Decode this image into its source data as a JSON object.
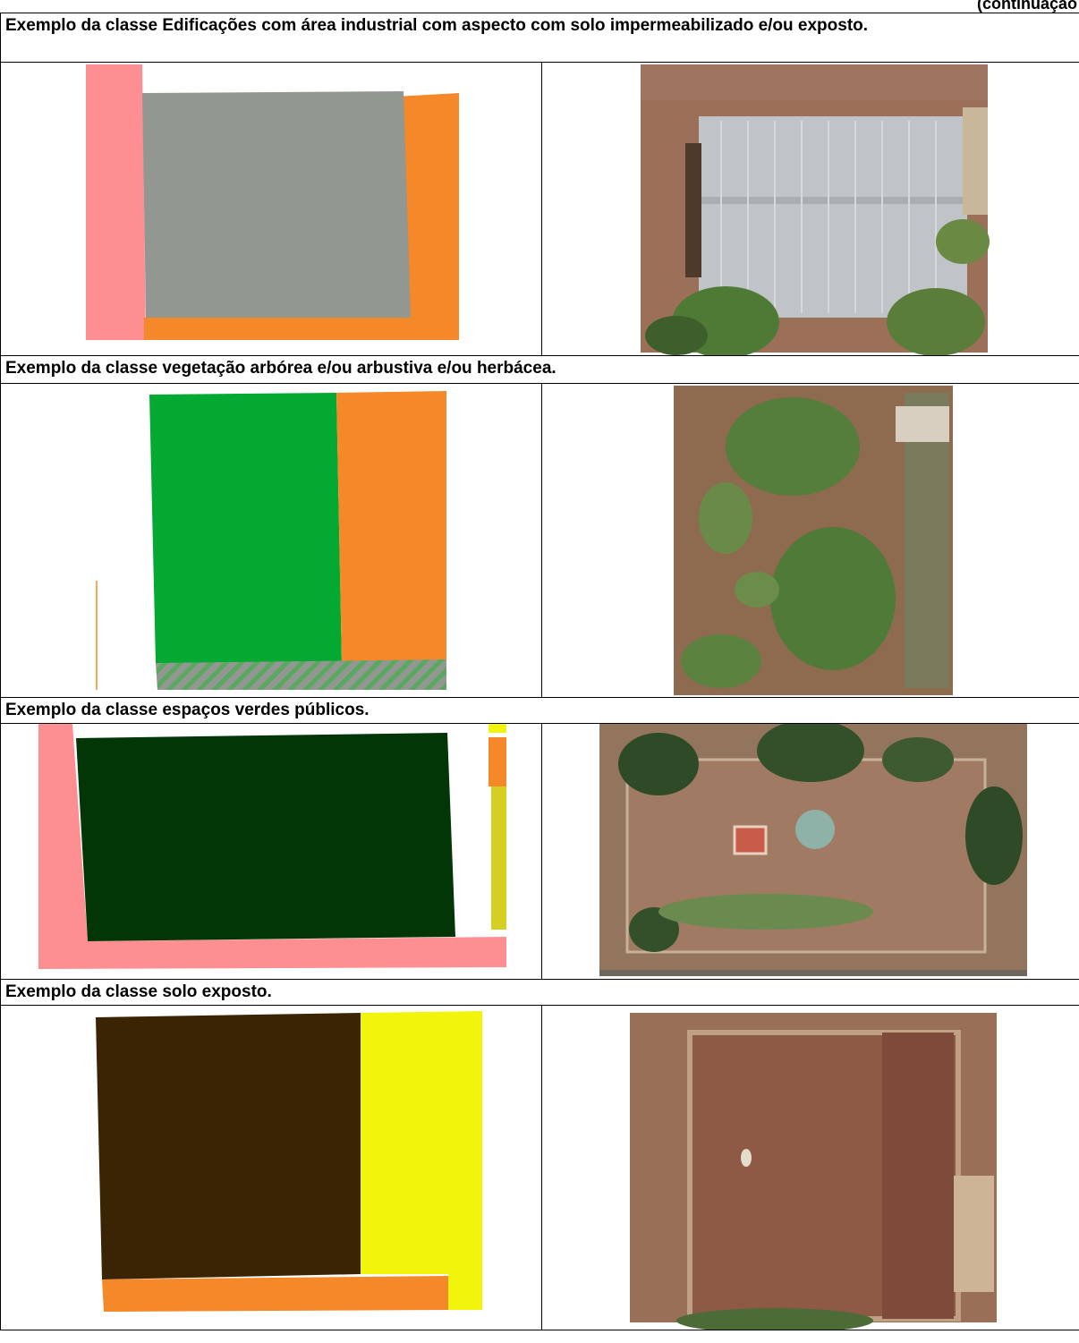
{
  "continuation": "(continuação",
  "rows": [
    {
      "caption": "Exemplo da classe Edificações com área industrial com aspecto com solo impermeabilizado e/ou exposto."
    },
    {
      "caption": "Exemplo da classe vegetação arbórea e/ou arbustiva e/ou herbácea."
    },
    {
      "caption": "Exemplo da classe espaços verdes públicos."
    },
    {
      "caption": "Exemplo da classe solo exposto."
    }
  ],
  "colors": {
    "road_pink": "#fd8e92",
    "industrial_gray": "#929791",
    "orange": "#f58829",
    "vegetation_green": "#04a932",
    "public_green_dark": "#023606",
    "yellow": "#f2f40c",
    "olive_yellow": "#d4cf20",
    "bare_soil_brown": "#3a2404",
    "soil_photo": "#9c7058"
  }
}
